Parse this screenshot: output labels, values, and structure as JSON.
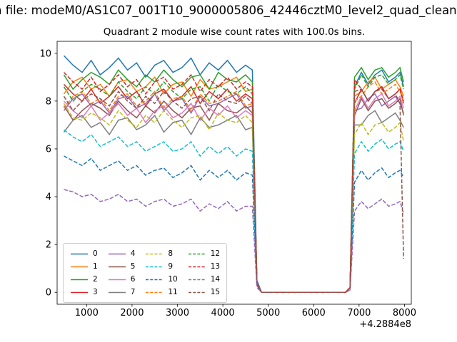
{
  "figure": {
    "suptitle": "n file: modeM0/AS1C07_001T10_9000005806_42446cztM0_level2_quad_clean",
    "axes_title": "Quadrant 2 module wise count rates with 100.0s bins.",
    "x_offset_label": "+4.2884e8",
    "background": "#ffffff"
  },
  "chart_data": {
    "type": "line",
    "title": "Quadrant 2 module wise count rates with 100.0s bins.",
    "suptitle": "n file: modeM0/AS1C07_001T10_9000005806_42446cztM0_level2_quad_clean",
    "xlabel": "",
    "ylabel": "",
    "x_axis_offset": "+4.2884e8",
    "xlim": [
      350,
      8150
    ],
    "ylim": [
      -0.5,
      10.5
    ],
    "xticks": [
      1000,
      2000,
      3000,
      4000,
      5000,
      6000,
      7000,
      8000
    ],
    "yticks": [
      0,
      2,
      4,
      6,
      8,
      10
    ],
    "grid": false,
    "legend": {
      "position": "lower left",
      "columns": 4,
      "entries": [
        "0",
        "1",
        "2",
        "3",
        "4",
        "5",
        "6",
        "7",
        "8",
        "9",
        "10",
        "11",
        "12",
        "13",
        "14",
        "15"
      ]
    },
    "x": [
      500,
      700,
      900,
      1100,
      1300,
      1500,
      1700,
      1900,
      2100,
      2300,
      2500,
      2700,
      2900,
      3100,
      3300,
      3500,
      3700,
      3900,
      4100,
      4300,
      4500,
      4650,
      4750,
      4850,
      5200,
      5600,
      6000,
      6400,
      6700,
      6800,
      6900,
      7050,
      7200,
      7350,
      7500,
      7650,
      7800,
      7900,
      7980
    ],
    "series": [
      {
        "name": "0",
        "color": "#1f77b4",
        "linestyle": "solid",
        "values": [
          9.9,
          9.5,
          9.2,
          9.7,
          9.1,
          9.4,
          9.8,
          9.3,
          9.6,
          9.0,
          9.5,
          9.7,
          9.2,
          9.4,
          9.8,
          9.1,
          9.6,
          9.3,
          9.7,
          9.2,
          9.5,
          9.3,
          0.5,
          0,
          0,
          0,
          0,
          0,
          0,
          0.2,
          8.6,
          9.2,
          8.7,
          9.1,
          9.3,
          8.8,
          9.0,
          9.2,
          8.6
        ]
      },
      {
        "name": "1",
        "color": "#ff7f0e",
        "linestyle": "solid",
        "values": [
          8.3,
          8.8,
          9.0,
          8.5,
          8.7,
          8.2,
          8.8,
          8.9,
          8.4,
          8.6,
          9.0,
          8.3,
          8.7,
          8.8,
          8.2,
          8.9,
          8.5,
          8.6,
          8.8,
          9.0,
          8.4,
          8.5,
          0.4,
          0,
          0,
          0,
          0,
          0,
          0,
          0.1,
          8.2,
          8.4,
          8.8,
          9.0,
          8.5,
          8.7,
          8.9,
          8.6,
          8.2
        ]
      },
      {
        "name": "2",
        "color": "#2ca02c",
        "linestyle": "solid",
        "values": [
          9.1,
          8.5,
          8.9,
          9.2,
          9.0,
          8.7,
          9.3,
          8.9,
          8.6,
          9.1,
          8.8,
          9.3,
          8.9,
          8.6,
          9.0,
          9.1,
          8.5,
          9.2,
          8.9,
          8.8,
          9.1,
          8.8,
          0.4,
          0,
          0,
          0,
          0,
          0,
          0,
          0.2,
          9.0,
          9.4,
          8.9,
          9.3,
          9.4,
          9.0,
          9.2,
          9.4,
          8.8
        ]
      },
      {
        "name": "3",
        "color": "#d62728",
        "linestyle": "solid",
        "values": [
          8.7,
          8.3,
          8.0,
          8.5,
          7.9,
          8.2,
          8.6,
          8.1,
          8.4,
          7.8,
          8.3,
          8.5,
          8.0,
          8.2,
          8.6,
          7.9,
          8.4,
          8.1,
          8.5,
          8.0,
          8.3,
          8.1,
          0.4,
          0,
          0,
          0,
          0,
          0,
          0,
          0.1,
          7.9,
          8.5,
          8.0,
          8.4,
          8.6,
          8.1,
          8.3,
          8.5,
          7.9
        ]
      },
      {
        "name": "4",
        "color": "#9467bd",
        "linestyle": "solid",
        "values": [
          7.6,
          8.1,
          8.3,
          7.8,
          8.0,
          7.5,
          8.1,
          8.2,
          7.7,
          7.9,
          8.3,
          7.6,
          8.0,
          8.1,
          7.5,
          8.2,
          7.8,
          7.9,
          8.1,
          8.3,
          7.7,
          7.8,
          0.4,
          0,
          0,
          0,
          0,
          0,
          0,
          0.1,
          7.6,
          7.7,
          8.1,
          8.3,
          7.8,
          8.0,
          8.2,
          7.9,
          7.5
        ]
      },
      {
        "name": "5",
        "color": "#8c564b",
        "linestyle": "solid",
        "values": [
          7.8,
          7.2,
          7.6,
          7.9,
          7.7,
          7.4,
          8.0,
          7.6,
          7.3,
          7.8,
          7.5,
          8.0,
          7.6,
          7.3,
          7.7,
          7.8,
          7.2,
          7.9,
          7.6,
          7.5,
          7.8,
          7.5,
          0.3,
          0,
          0,
          0,
          0,
          0,
          0,
          0.1,
          7.4,
          8.1,
          7.6,
          8.0,
          8.1,
          7.7,
          7.9,
          8.1,
          7.4
        ]
      },
      {
        "name": "6",
        "color": "#e377c2",
        "linestyle": "solid",
        "values": [
          8.0,
          7.6,
          7.3,
          7.8,
          7.2,
          7.5,
          7.9,
          7.4,
          7.7,
          7.1,
          7.6,
          7.8,
          7.3,
          7.5,
          7.9,
          7.2,
          7.7,
          7.4,
          7.8,
          7.3,
          7.6,
          7.4,
          0.3,
          0,
          0,
          0,
          0,
          0,
          0,
          0.1,
          7.6,
          8.2,
          7.7,
          8.1,
          8.3,
          7.8,
          8.0,
          8.2,
          7.7
        ]
      },
      {
        "name": "7",
        "color": "#7f7f7f",
        "linestyle": "solid",
        "values": [
          6.7,
          7.2,
          7.4,
          6.9,
          7.1,
          6.6,
          7.2,
          7.3,
          6.8,
          7.0,
          7.4,
          6.7,
          7.1,
          7.2,
          6.6,
          7.3,
          6.9,
          7.0,
          7.2,
          7.4,
          6.8,
          6.9,
          0.3,
          0,
          0,
          0,
          0,
          0,
          0,
          0.1,
          7.0,
          7.0,
          7.4,
          7.6,
          7.1,
          7.3,
          7.5,
          7.2,
          6.9
        ]
      },
      {
        "name": "8",
        "color": "#bcbd22",
        "linestyle": "dashed",
        "values": [
          7.9,
          7.3,
          7.2,
          7.5,
          7.3,
          7.0,
          7.6,
          7.2,
          6.9,
          7.4,
          7.1,
          7.6,
          7.2,
          6.9,
          7.3,
          7.4,
          6.8,
          7.5,
          7.2,
          7.1,
          7.4,
          7.1,
          0.3,
          0,
          0,
          0,
          0,
          0,
          0,
          0.1,
          6.6,
          7.1,
          6.6,
          7.0,
          7.1,
          6.7,
          6.9,
          7.1,
          6.3
        ]
      },
      {
        "name": "9",
        "color": "#17becf",
        "linestyle": "dashed",
        "values": [
          6.8,
          6.5,
          6.3,
          6.6,
          6.1,
          6.3,
          6.5,
          6.1,
          6.3,
          5.9,
          6.1,
          6.3,
          5.9,
          6.0,
          6.3,
          5.7,
          6.1,
          5.8,
          6.1,
          5.7,
          6.0,
          5.9,
          0.3,
          0,
          0,
          0,
          0,
          0,
          0,
          0.1,
          5.8,
          6.3,
          5.9,
          6.2,
          6.4,
          6.0,
          6.2,
          6.3,
          5.9
        ]
      },
      {
        "name": "10",
        "color": "#1f77b4",
        "linestyle": "dashed",
        "values": [
          5.7,
          5.5,
          5.3,
          5.6,
          5.1,
          5.3,
          5.5,
          5.1,
          5.3,
          4.9,
          5.1,
          5.2,
          4.8,
          5.0,
          5.3,
          4.7,
          5.1,
          4.8,
          5.1,
          4.7,
          5.0,
          4.9,
          0.3,
          0,
          0,
          0,
          0,
          0,
          0,
          0.1,
          4.6,
          5.1,
          4.7,
          5.0,
          5.2,
          4.8,
          5.0,
          5.1,
          4.8
        ]
      },
      {
        "name": "11",
        "color": "#ff7f0e",
        "linestyle": "dashed",
        "values": [
          7.7,
          8.2,
          8.4,
          7.9,
          8.1,
          7.6,
          8.2,
          8.3,
          7.8,
          8.0,
          8.4,
          7.7,
          8.1,
          8.2,
          7.6,
          8.3,
          7.9,
          8.0,
          8.2,
          8.4,
          7.8,
          7.9,
          0.4,
          0,
          0,
          0,
          0,
          0,
          0,
          0.1,
          8.0,
          8.2,
          8.6,
          8.8,
          8.3,
          8.5,
          8.7,
          8.4,
          8.0
        ]
      },
      {
        "name": "12",
        "color": "#2ca02c",
        "linestyle": "dashed",
        "values": [
          8.6,
          8.0,
          8.4,
          8.7,
          8.5,
          8.2,
          8.8,
          8.4,
          8.1,
          8.6,
          8.3,
          8.8,
          8.4,
          8.1,
          8.5,
          8.6,
          8.0,
          8.7,
          8.4,
          8.3,
          8.6,
          8.3,
          0.4,
          0,
          0,
          0,
          0,
          0,
          0,
          0.2,
          8.5,
          9.1,
          8.6,
          9.0,
          9.1,
          8.7,
          8.9,
          9.1,
          8.5
        ]
      },
      {
        "name": "13",
        "color": "#d62728",
        "linestyle": "dashed",
        "values": [
          9.2,
          8.8,
          8.5,
          9.0,
          8.4,
          8.7,
          9.1,
          8.6,
          8.9,
          8.3,
          8.8,
          9.0,
          8.5,
          8.7,
          9.1,
          8.4,
          8.9,
          8.6,
          9.0,
          8.5,
          8.8,
          8.6,
          0.4,
          0,
          0,
          0,
          0,
          0,
          0,
          0.2,
          8.9,
          8.5,
          8.0,
          8.4,
          8.6,
          8.1,
          8.3,
          8.5,
          8.0
        ]
      },
      {
        "name": "14",
        "color": "#9467bd",
        "linestyle": "dashed",
        "values": [
          4.3,
          4.2,
          4.0,
          4.1,
          3.8,
          3.9,
          4.1,
          3.8,
          3.9,
          3.6,
          3.8,
          3.9,
          3.6,
          3.7,
          3.9,
          3.4,
          3.7,
          3.5,
          3.8,
          3.4,
          3.6,
          3.6,
          0.2,
          0,
          0,
          0,
          0,
          0,
          0,
          0.1,
          3.4,
          3.8,
          3.5,
          3.7,
          3.9,
          3.6,
          3.7,
          3.8,
          3.3
        ]
      },
      {
        "name": "15",
        "color": "#8c564b",
        "linestyle": "dashed",
        "values": [
          8.2,
          7.6,
          8.0,
          8.3,
          8.1,
          7.8,
          8.4,
          8.0,
          7.7,
          8.2,
          7.9,
          8.4,
          8.0,
          7.7,
          8.1,
          8.2,
          7.6,
          8.3,
          8.0,
          7.9,
          8.2,
          7.9,
          0.4,
          0,
          0,
          0,
          0,
          0,
          0,
          0.2,
          8.4,
          8.5,
          8.0,
          8.4,
          8.5,
          8.1,
          8.3,
          7.9,
          1.4
        ]
      }
    ]
  }
}
